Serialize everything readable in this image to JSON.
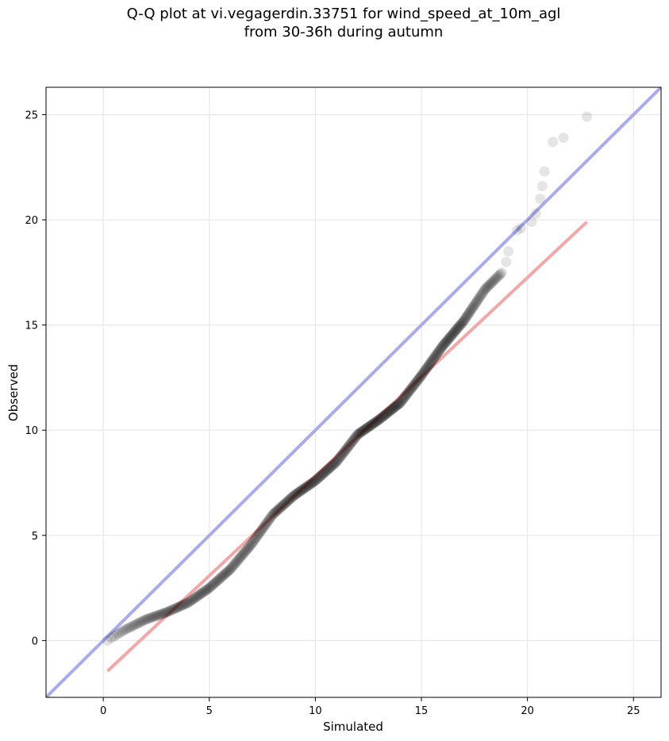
{
  "chart_data": {
    "type": "scatter",
    "title_lines": [
      "Q-Q plot at vi.vegagerdin.33751 for wind_speed_at_10m_agl",
      "from 30-36h during autumn"
    ],
    "xlabel": "Simulated",
    "ylabel": "Observed",
    "xlim": [
      -2.7,
      26.3
    ],
    "ylim": [
      -2.7,
      26.3
    ],
    "xticks": [
      0,
      5,
      10,
      15,
      20,
      25
    ],
    "yticks": [
      0,
      5,
      10,
      15,
      20,
      25
    ],
    "grid": true,
    "colors": {
      "points": "#000000",
      "identity_line": "#aaaaf0",
      "fit_line": "#f5a6a6",
      "grid": "#e8e8e8"
    },
    "identity_line": {
      "x": [
        -2.7,
        26.3
      ],
      "y": [
        -2.7,
        26.3
      ]
    },
    "fit_line": {
      "x": [
        0.2,
        22.8
      ],
      "y": [
        -1.45,
        19.9
      ]
    },
    "curve_anchors": [
      [
        0.2,
        0.0
      ],
      [
        0.5,
        0.2
      ],
      [
        1.0,
        0.5
      ],
      [
        2.0,
        1.0
      ],
      [
        3.0,
        1.35
      ],
      [
        4.0,
        1.8
      ],
      [
        5.0,
        2.5
      ],
      [
        6.0,
        3.4
      ],
      [
        7.0,
        4.6
      ],
      [
        8.0,
        6.0
      ],
      [
        9.0,
        6.9
      ],
      [
        10.0,
        7.6
      ],
      [
        11.0,
        8.5
      ],
      [
        12.0,
        9.8
      ],
      [
        13.0,
        10.5
      ],
      [
        14.0,
        11.3
      ],
      [
        15.0,
        12.6
      ],
      [
        16.0,
        14.0
      ],
      [
        17.0,
        15.2
      ],
      [
        18.0,
        16.7
      ],
      [
        18.8,
        17.5
      ]
    ],
    "tail_points": [
      [
        19.0,
        18.0
      ],
      [
        19.1,
        18.5
      ],
      [
        19.5,
        19.5
      ],
      [
        19.7,
        19.6
      ],
      [
        20.2,
        19.9
      ],
      [
        20.4,
        20.3
      ],
      [
        20.6,
        21.0
      ],
      [
        20.7,
        21.6
      ],
      [
        20.8,
        22.3
      ],
      [
        21.2,
        23.7
      ],
      [
        21.7,
        23.9
      ],
      [
        22.8,
        24.9
      ]
    ],
    "n_points": 460
  }
}
